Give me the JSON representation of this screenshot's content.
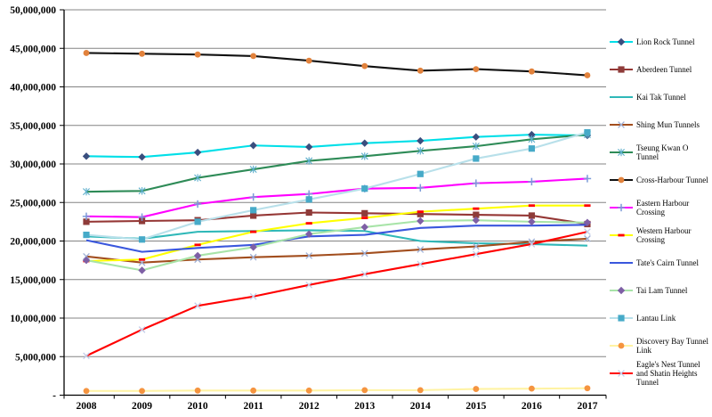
{
  "chart_data": {
    "type": "line",
    "title": "",
    "xlabel": "",
    "ylabel": "",
    "grid": true,
    "legend_position": "right",
    "x_labels": [
      "2008",
      "2009",
      "2010",
      "2011",
      "2012",
      "2013",
      "2014",
      "2015",
      "2016",
      "2017"
    ],
    "y_axis": {
      "min": 0,
      "max": 50000000,
      "step": 5000000,
      "ticks": [
        {
          "value": 50000000,
          "label": "50,000,000"
        },
        {
          "value": 45000000,
          "label": "45,000,000"
        },
        {
          "value": 40000000,
          "label": "40,000,000"
        },
        {
          "value": 35000000,
          "label": "35,000,000"
        },
        {
          "value": 30000000,
          "label": "30,000,000"
        },
        {
          "value": 25000000,
          "label": "25,000,000"
        },
        {
          "value": 20000000,
          "label": "20,000,000"
        },
        {
          "value": 15000000,
          "label": "15,000,000"
        },
        {
          "value": 10000000,
          "label": "10,000,000"
        },
        {
          "value": 5000000,
          "label": "5,000,000"
        },
        {
          "value": 0,
          "label": "-"
        }
      ]
    },
    "series": [
      {
        "name": "Lion Rock Tunnel",
        "line_color": "#00DFE8",
        "marker": "diamond",
        "marker_color": "#3A4E7E",
        "values": [
          31000000,
          30900000,
          31500000,
          32400000,
          32200000,
          32700000,
          33000000,
          33500000,
          33800000,
          33700000
        ]
      },
      {
        "name": "Aberdeen Tunnel",
        "line_color": "#953735",
        "marker": "square",
        "marker_color": "#8E3B39",
        "values": [
          22500000,
          22600000,
          22700000,
          23300000,
          23700000,
          23600000,
          23500000,
          23400000,
          23300000,
          22200000
        ]
      },
      {
        "name": "Kai Tak Tunnel",
        "line_color": "#2FB8B8",
        "marker": "none",
        "marker_color": "#2FB8B8",
        "values": [
          20600000,
          20300000,
          21200000,
          21300000,
          21400000,
          21300000,
          20000000,
          19700000,
          19600000,
          19400000
        ]
      },
      {
        "name": "Shing Mun Tunnels",
        "line_color": "#A24E1E",
        "marker": "x",
        "marker_color": "#9FAFD5",
        "values": [
          18000000,
          17200000,
          17600000,
          17900000,
          18100000,
          18400000,
          18900000,
          19300000,
          19900000,
          20300000
        ]
      },
      {
        "name": "Tseung Kwan O Tunnel",
        "line_color": "#2E8B57",
        "marker": "star",
        "marker_color": "#5BAECB",
        "values": [
          26400000,
          26500000,
          28200000,
          29300000,
          30400000,
          31000000,
          31700000,
          32300000,
          33200000,
          33800000
        ]
      },
      {
        "name": "Cross-Harbour Tunnel",
        "line_color": "#111111",
        "marker": "circle",
        "marker_color": "#E2823C",
        "values": [
          44400000,
          44300000,
          44200000,
          44000000,
          43400000,
          42700000,
          42100000,
          42300000,
          42000000,
          41500000
        ]
      },
      {
        "name": "Eastern Harbour Crossing",
        "line_color": "#FF00FF",
        "marker": "plus",
        "marker_color": "#7B9BD9",
        "values": [
          23200000,
          23100000,
          24800000,
          25700000,
          26100000,
          26800000,
          26900000,
          27500000,
          27700000,
          28100000
        ]
      },
      {
        "name": "Western Harbour Crossing",
        "line_color": "#FFFF00",
        "marker": "dash",
        "marker_color": "#FF0000",
        "values": [
          17400000,
          17600000,
          19500000,
          21200000,
          22300000,
          23000000,
          23800000,
          24200000,
          24600000,
          24600000
        ]
      },
      {
        "name": "Tate's Cairn Tunnel",
        "line_color": "#3A57DD",
        "marker": "none",
        "marker_color": "#3A57DD",
        "values": [
          20100000,
          18600000,
          19100000,
          19500000,
          20600000,
          20800000,
          21700000,
          22000000,
          22000000,
          22100000
        ]
      },
      {
        "name": "Tai Lam Tunnel",
        "line_color": "#A8E4A8",
        "marker": "diamond",
        "marker_color": "#7E5FA5",
        "values": [
          17500000,
          16200000,
          18100000,
          19200000,
          20900000,
          21800000,
          22600000,
          22700000,
          22500000,
          22400000
        ]
      },
      {
        "name": "Lantau Link",
        "line_color": "#B8E0EA",
        "marker": "square",
        "marker_color": "#46AAC8",
        "values": [
          20800000,
          20200000,
          22500000,
          24000000,
          25400000,
          26800000,
          28700000,
          30700000,
          32000000,
          34100000
        ]
      },
      {
        "name": "Discovery Bay Tunnel Link",
        "line_color": "#FFF3A3",
        "marker": "circle",
        "marker_color": "#F59440",
        "values": [
          550000,
          550000,
          600000,
          600000,
          600000,
          650000,
          650000,
          800000,
          850000,
          900000
        ]
      },
      {
        "name": "Eagle's Nest Tunnel and Shatin Heights Tunnel",
        "line_color": "#FF0000",
        "marker": "x",
        "marker_color": "#C3CDEA",
        "values": [
          5100000,
          8500000,
          11600000,
          12800000,
          14300000,
          15700000,
          17000000,
          18300000,
          19600000,
          21200000
        ]
      }
    ]
  }
}
